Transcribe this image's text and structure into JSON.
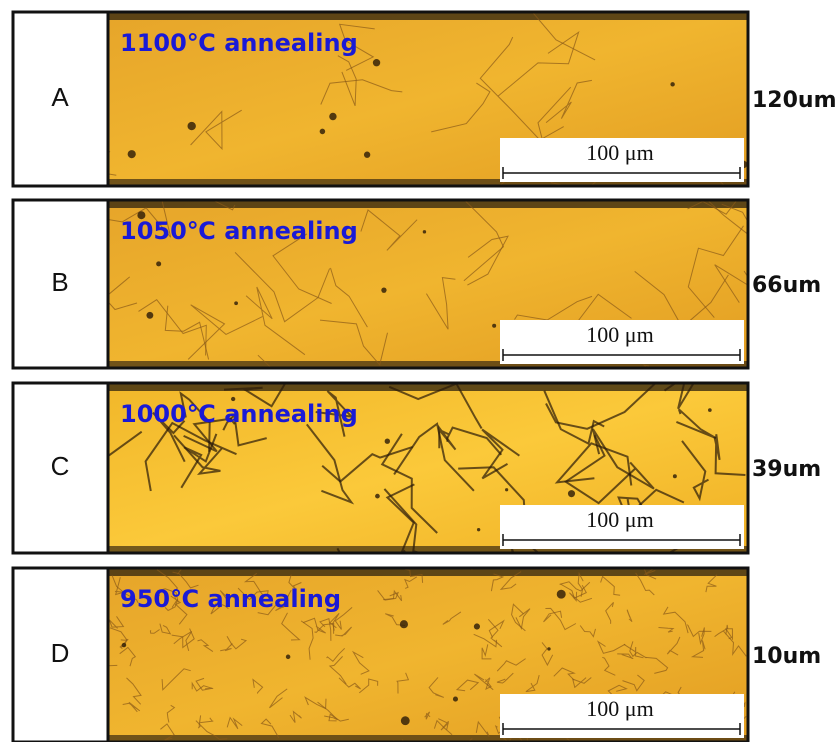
{
  "panels": [
    {
      "label": "A",
      "annealing": "1100℃ annealing",
      "scale_bar": "100 μm",
      "grain_size": "120um"
    },
    {
      "label": "B",
      "annealing": "1050℃ annealing",
      "scale_bar": "100 μm",
      "grain_size": "66um"
    },
    {
      "label": "C",
      "annealing": "1000℃ annealing",
      "scale_bar": "100 μm",
      "grain_size": "39um"
    },
    {
      "label": "D",
      "annealing": "950℃ annealing",
      "scale_bar": "100 μm",
      "grain_size": "10um"
    }
  ]
}
